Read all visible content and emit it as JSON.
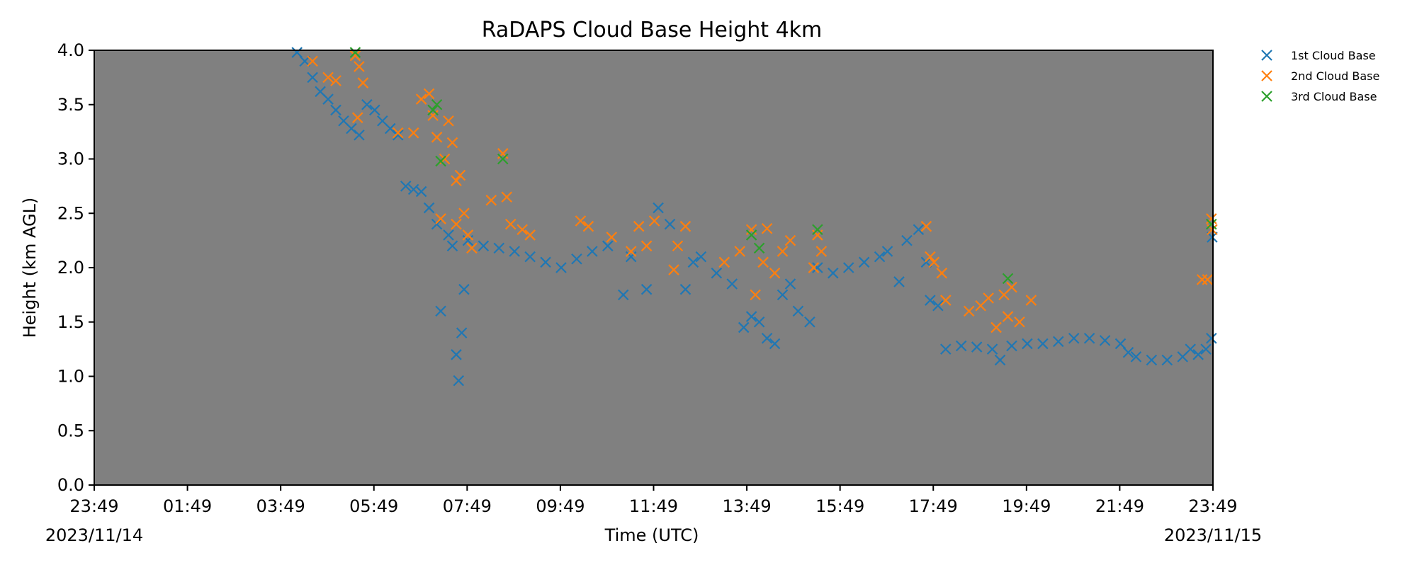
{
  "chart_data": {
    "type": "scatter",
    "title": "RaDAPS Cloud Base Height 4km",
    "xlabel": "Time (UTC)",
    "ylabel": "Height (km AGL)",
    "xlim": [
      "2023-11-14 23:49",
      "2023-11-15 23:49"
    ],
    "ylim": [
      0.0,
      4.0
    ],
    "x_ticks": [
      "23:49",
      "01:49",
      "03:49",
      "05:49",
      "07:49",
      "09:49",
      "11:49",
      "13:49",
      "15:49",
      "17:49",
      "19:49",
      "21:49",
      "23:49"
    ],
    "x_start_date_label": "2023/11/14",
    "x_end_date_label": "2023/11/15",
    "y_ticks": [
      "0.0",
      "0.5",
      "1.0",
      "1.5",
      "2.0",
      "2.5",
      "3.0",
      "3.5",
      "4.0"
    ],
    "background": "#808080",
    "grid": false,
    "legend_position": "outside-top-right",
    "marker": "x",
    "series": [
      {
        "name": "1st Cloud Base",
        "color": "#1f77b4",
        "points": [
          [
            "2023-11-15 04:10",
            3.98
          ],
          [
            "2023-11-15 04:20",
            3.9
          ],
          [
            "2023-11-15 04:30",
            3.75
          ],
          [
            "2023-11-15 04:40",
            3.62
          ],
          [
            "2023-11-15 04:50",
            3.55
          ],
          [
            "2023-11-15 05:00",
            3.45
          ],
          [
            "2023-11-15 05:10",
            3.35
          ],
          [
            "2023-11-15 05:20",
            3.28
          ],
          [
            "2023-11-15 05:30",
            3.22
          ],
          [
            "2023-11-15 05:40",
            3.5
          ],
          [
            "2023-11-15 05:50",
            3.45
          ],
          [
            "2023-11-15 06:00",
            3.35
          ],
          [
            "2023-11-15 06:10",
            3.28
          ],
          [
            "2023-11-15 06:20",
            3.22
          ],
          [
            "2023-11-15 06:30",
            2.75
          ],
          [
            "2023-11-15 06:40",
            2.72
          ],
          [
            "2023-11-15 06:50",
            2.7
          ],
          [
            "2023-11-15 07:00",
            2.55
          ],
          [
            "2023-11-15 07:10",
            2.4
          ],
          [
            "2023-11-15 07:15",
            1.6
          ],
          [
            "2023-11-15 07:25",
            2.3
          ],
          [
            "2023-11-15 07:30",
            2.2
          ],
          [
            "2023-11-15 07:35",
            1.2
          ],
          [
            "2023-11-15 07:38",
            0.96
          ],
          [
            "2023-11-15 07:42",
            1.4
          ],
          [
            "2023-11-15 07:45",
            1.8
          ],
          [
            "2023-11-15 07:50",
            2.25
          ],
          [
            "2023-11-15 08:10",
            2.2
          ],
          [
            "2023-11-15 08:30",
            2.18
          ],
          [
            "2023-11-15 08:50",
            2.15
          ],
          [
            "2023-11-15 09:10",
            2.1
          ],
          [
            "2023-11-15 09:30",
            2.05
          ],
          [
            "2023-11-15 09:50",
            2.0
          ],
          [
            "2023-11-15 10:10",
            2.08
          ],
          [
            "2023-11-15 10:30",
            2.15
          ],
          [
            "2023-11-15 10:50",
            2.2
          ],
          [
            "2023-11-15 11:10",
            1.75
          ],
          [
            "2023-11-15 11:20",
            2.1
          ],
          [
            "2023-11-15 11:40",
            1.8
          ],
          [
            "2023-11-15 11:55",
            2.55
          ],
          [
            "2023-11-15 12:10",
            2.4
          ],
          [
            "2023-11-15 12:20",
            2.2
          ],
          [
            "2023-11-15 12:30",
            1.8
          ],
          [
            "2023-11-15 12:40",
            2.05
          ],
          [
            "2023-11-15 12:50",
            2.1
          ],
          [
            "2023-11-15 13:10",
            1.95
          ],
          [
            "2023-11-15 13:30",
            1.85
          ],
          [
            "2023-11-15 13:45",
            1.45
          ],
          [
            "2023-11-15 13:55",
            1.55
          ],
          [
            "2023-11-15 14:05",
            1.5
          ],
          [
            "2023-11-15 14:15",
            1.35
          ],
          [
            "2023-11-15 14:25",
            1.3
          ],
          [
            "2023-11-15 14:35",
            1.75
          ],
          [
            "2023-11-15 14:45",
            1.85
          ],
          [
            "2023-11-15 14:55",
            1.6
          ],
          [
            "2023-11-15 15:10",
            1.5
          ],
          [
            "2023-11-15 15:20",
            2.0
          ],
          [
            "2023-11-15 15:40",
            1.95
          ],
          [
            "2023-11-15 16:00",
            2.0
          ],
          [
            "2023-11-15 16:20",
            2.05
          ],
          [
            "2023-11-15 16:40",
            2.1
          ],
          [
            "2023-11-15 16:50",
            2.15
          ],
          [
            "2023-11-15 17:05",
            1.87
          ],
          [
            "2023-11-15 17:15",
            2.25
          ],
          [
            "2023-11-15 17:30",
            2.35
          ],
          [
            "2023-11-15 17:40",
            2.05
          ],
          [
            "2023-11-15 17:45",
            1.7
          ],
          [
            "2023-11-15 17:55",
            1.65
          ],
          [
            "2023-11-15 18:05",
            1.25
          ],
          [
            "2023-11-15 18:25",
            1.28
          ],
          [
            "2023-11-15 18:45",
            1.27
          ],
          [
            "2023-11-15 19:05",
            1.25
          ],
          [
            "2023-11-15 19:15",
            1.15
          ],
          [
            "2023-11-15 19:30",
            1.28
          ],
          [
            "2023-11-15 19:50",
            1.3
          ],
          [
            "2023-11-15 20:10",
            1.3
          ],
          [
            "2023-11-15 20:30",
            1.32
          ],
          [
            "2023-11-15 20:50",
            1.35
          ],
          [
            "2023-11-15 21:10",
            1.35
          ],
          [
            "2023-11-15 21:30",
            1.33
          ],
          [
            "2023-11-15 21:50",
            1.3
          ],
          [
            "2023-11-15 22:00",
            1.22
          ],
          [
            "2023-11-15 22:10",
            1.18
          ],
          [
            "2023-11-15 22:30",
            1.15
          ],
          [
            "2023-11-15 22:50",
            1.15
          ],
          [
            "2023-11-15 23:10",
            1.18
          ],
          [
            "2023-11-15 23:20",
            1.25
          ],
          [
            "2023-11-15 23:30",
            1.2
          ],
          [
            "2023-11-15 23:40",
            1.25
          ],
          [
            "2023-11-15 23:47",
            1.35
          ],
          [
            "2023-11-15 23:48",
            2.28
          ]
        ]
      },
      {
        "name": "2nd Cloud Base",
        "color": "#ff7f0e",
        "points": [
          [
            "2023-11-15 04:30",
            3.9
          ],
          [
            "2023-11-15 04:50",
            3.75
          ],
          [
            "2023-11-15 05:00",
            3.72
          ],
          [
            "2023-11-15 05:25",
            3.95
          ],
          [
            "2023-11-15 05:30",
            3.85
          ],
          [
            "2023-11-15 05:35",
            3.7
          ],
          [
            "2023-11-15 05:28",
            3.38
          ],
          [
            "2023-11-15 06:20",
            3.24
          ],
          [
            "2023-11-15 06:40",
            3.24
          ],
          [
            "2023-11-15 06:50",
            3.55
          ],
          [
            "2023-11-15 07:00",
            3.6
          ],
          [
            "2023-11-15 07:05",
            3.4
          ],
          [
            "2023-11-15 07:10",
            3.2
          ],
          [
            "2023-11-15 07:15",
            2.45
          ],
          [
            "2023-11-15 07:20",
            3.0
          ],
          [
            "2023-11-15 07:25",
            3.35
          ],
          [
            "2023-11-15 07:30",
            3.15
          ],
          [
            "2023-11-15 07:35",
            2.8
          ],
          [
            "2023-11-15 07:40",
            2.85
          ],
          [
            "2023-11-15 07:35",
            2.4
          ],
          [
            "2023-11-15 07:45",
            2.5
          ],
          [
            "2023-11-15 07:50",
            2.3
          ],
          [
            "2023-11-15 07:55",
            2.18
          ],
          [
            "2023-11-15 08:20",
            2.62
          ],
          [
            "2023-11-15 08:35",
            3.05
          ],
          [
            "2023-11-15 08:40",
            2.65
          ],
          [
            "2023-11-15 08:45",
            2.4
          ],
          [
            "2023-11-15 09:00",
            2.35
          ],
          [
            "2023-11-15 09:10",
            2.3
          ],
          [
            "2023-11-15 10:15",
            2.43
          ],
          [
            "2023-11-15 10:25",
            2.38
          ],
          [
            "2023-11-15 10:55",
            2.28
          ],
          [
            "2023-11-15 11:20",
            2.15
          ],
          [
            "2023-11-15 11:30",
            2.38
          ],
          [
            "2023-11-15 11:40",
            2.2
          ],
          [
            "2023-11-15 11:50",
            2.43
          ],
          [
            "2023-11-15 12:15",
            1.98
          ],
          [
            "2023-11-15 12:20",
            2.2
          ],
          [
            "2023-11-15 12:30",
            2.38
          ],
          [
            "2023-11-15 13:20",
            2.05
          ],
          [
            "2023-11-15 13:40",
            2.15
          ],
          [
            "2023-11-15 13:55",
            2.35
          ],
          [
            "2023-11-15 14:00",
            1.75
          ],
          [
            "2023-11-15 14:10",
            2.05
          ],
          [
            "2023-11-15 14:15",
            2.36
          ],
          [
            "2023-11-15 14:25",
            1.95
          ],
          [
            "2023-11-15 14:35",
            2.15
          ],
          [
            "2023-11-15 14:45",
            2.25
          ],
          [
            "2023-11-15 15:15",
            2.0
          ],
          [
            "2023-11-15 15:20",
            2.3
          ],
          [
            "2023-11-15 15:25",
            2.15
          ],
          [
            "2023-11-15 17:40",
            2.38
          ],
          [
            "2023-11-15 17:45",
            2.1
          ],
          [
            "2023-11-15 17:50",
            2.05
          ],
          [
            "2023-11-15 18:00",
            1.95
          ],
          [
            "2023-11-15 18:05",
            1.7
          ],
          [
            "2023-11-15 18:35",
            1.6
          ],
          [
            "2023-11-15 18:50",
            1.65
          ],
          [
            "2023-11-15 19:00",
            1.72
          ],
          [
            "2023-11-15 19:10",
            1.45
          ],
          [
            "2023-11-15 19:20",
            1.75
          ],
          [
            "2023-11-15 19:25",
            1.55
          ],
          [
            "2023-11-15 19:30",
            1.82
          ],
          [
            "2023-11-15 19:40",
            1.5
          ],
          [
            "2023-11-15 19:55",
            1.7
          ],
          [
            "2023-11-15 23:35",
            1.89
          ],
          [
            "2023-11-15 23:42",
            1.89
          ],
          [
            "2023-11-15 23:47",
            2.45
          ],
          [
            "2023-11-15 23:48",
            2.35
          ]
        ]
      },
      {
        "name": "3rd Cloud Base",
        "color": "#2ca02c",
        "points": [
          [
            "2023-11-15 05:25",
            3.98
          ],
          [
            "2023-11-15 07:05",
            3.45
          ],
          [
            "2023-11-15 07:10",
            3.5
          ],
          [
            "2023-11-15 07:15",
            2.98
          ],
          [
            "2023-11-15 08:35",
            3.0
          ],
          [
            "2023-11-15 13:55",
            2.3
          ],
          [
            "2023-11-15 14:05",
            2.18
          ],
          [
            "2023-11-15 15:20",
            2.35
          ],
          [
            "2023-11-15 19:25",
            1.9
          ],
          [
            "2023-11-15 23:47",
            2.4
          ]
        ]
      }
    ]
  }
}
